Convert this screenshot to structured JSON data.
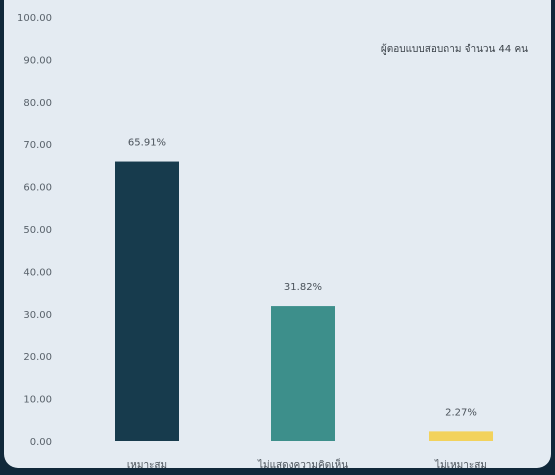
{
  "chart_data": {
    "type": "bar",
    "title": "",
    "xlabel": "",
    "ylabel": "",
    "ylim": [
      0,
      100
    ],
    "yticks": [
      "0.00",
      "10.00",
      "20.00",
      "30.00",
      "40.00",
      "50.00",
      "60.00",
      "70.00",
      "80.00",
      "90.00",
      "100.00"
    ],
    "categories": [
      "เหมาะสม",
      "ไม่แสดงความคิดเห็น",
      "ไม่เหมาะสม"
    ],
    "values": [
      65.91,
      31.82,
      2.27
    ],
    "data_labels": [
      "65.91%",
      "31.82%",
      "2.27%"
    ],
    "colors": [
      "#173b4d",
      "#3d8f8b",
      "#f2d25c"
    ],
    "annotation": "ผู้ตอบแบบสอบถาม จำนวน 44 คน",
    "grid": false,
    "legend": "none"
  }
}
